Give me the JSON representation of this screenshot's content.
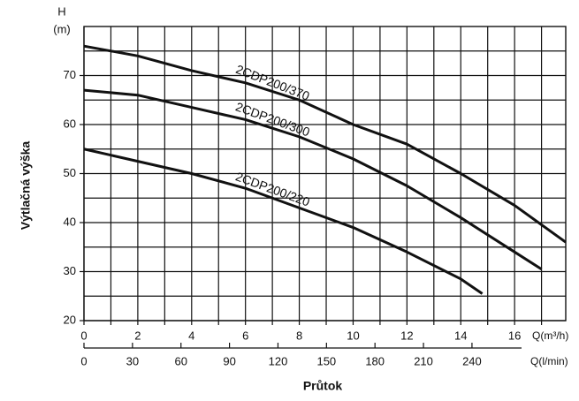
{
  "chart_data": {
    "type": "line",
    "y_unit_top": "H",
    "y_unit_bottom": "(m)",
    "y_label": "Výtlačná výška",
    "x_label": "Průtok",
    "x_unit": "Q(m³/h)",
    "x2_unit": "Q(l/min)",
    "xlim": [
      0,
      17.9
    ],
    "xticks": [
      0,
      2,
      4,
      6,
      8,
      10,
      12,
      14,
      16
    ],
    "xminorticks": [
      1,
      3,
      5,
      7,
      9,
      11,
      13,
      15,
      17
    ],
    "x2lim": [
      0,
      298
    ],
    "x2ticks": [
      0,
      30,
      60,
      90,
      120,
      150,
      180,
      210,
      240
    ],
    "ylim": [
      20,
      80
    ],
    "yticks": [
      20,
      30,
      40,
      50,
      60,
      70
    ],
    "yminorticks": [
      25,
      35,
      45,
      55,
      65,
      75
    ],
    "grid": true,
    "series": [
      {
        "name": "2CDP200/370",
        "color": "#111111",
        "x": [
          0,
          2,
          4,
          6,
          8,
          10,
          12,
          14,
          16,
          17.9
        ],
        "values": [
          76,
          74,
          71,
          68.5,
          65,
          60,
          56,
          50,
          43.5,
          36
        ]
      },
      {
        "name": "2CDP200/300",
        "color": "#111111",
        "x": [
          0,
          2,
          4,
          6,
          8,
          10,
          12,
          14,
          16,
          17
        ],
        "values": [
          67,
          66,
          63.5,
          61,
          57.5,
          53,
          47.5,
          41,
          34,
          30.5
        ]
      },
      {
        "name": "2CDP200/220",
        "color": "#111111",
        "x": [
          0,
          2,
          4,
          6,
          8,
          10,
          12,
          14,
          14.8
        ],
        "values": [
          55,
          52.5,
          50,
          47,
          43,
          39,
          34,
          28.5,
          25.5
        ]
      }
    ]
  }
}
